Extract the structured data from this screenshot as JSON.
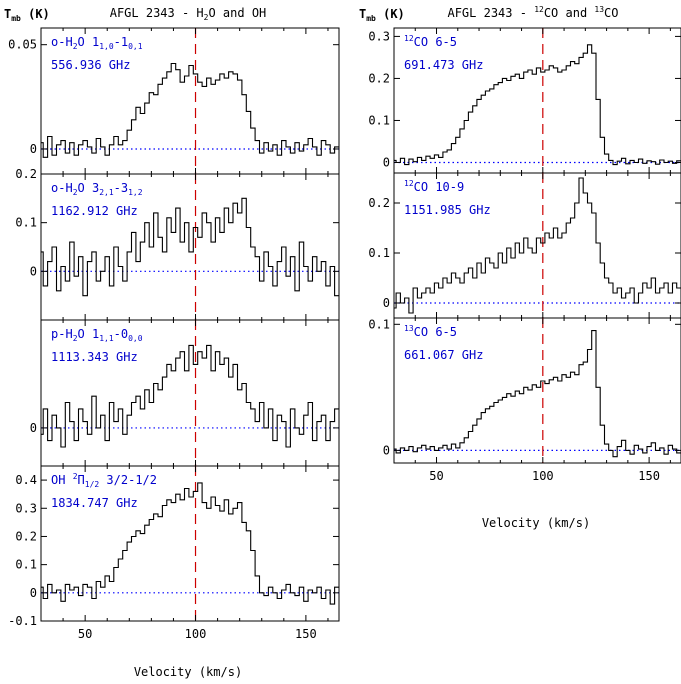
{
  "colors": {
    "text": "#000000",
    "label": "#0000cc",
    "dashed": "#cc0000",
    "baseline": "#0000ff"
  },
  "left_column": {
    "title": "AFGL 2343 - H2O and OH",
    "ylabel": "Tmb (K)",
    "xlabel": "Velocity (km/s)"
  },
  "right_column": {
    "title": "AFGL 2343 - 12CO and 13CO",
    "ylabel": "Tmb (K)",
    "xlabel": "Velocity (km/s)"
  },
  "chart_data": [
    {
      "type": "line",
      "column": "left",
      "label_line1": "o-H2O 1(1,0)-1(0,1)",
      "label_line2": "556.936 GHz",
      "xlim": [
        30,
        165
      ],
      "ylim": [
        -0.012,
        0.058
      ],
      "yticks": [
        0,
        0.05
      ],
      "ytick_labels": [
        "0",
        "0.05"
      ],
      "xticks": [
        50,
        100,
        150
      ],
      "reference_velocity": 100,
      "x": [
        30,
        32,
        34,
        36,
        38,
        40,
        42,
        44,
        46,
        48,
        50,
        52,
        54,
        56,
        58,
        60,
        62,
        64,
        66,
        68,
        70,
        72,
        74,
        76,
        78,
        80,
        82,
        84,
        86,
        88,
        90,
        92,
        94,
        96,
        98,
        100,
        102,
        104,
        106,
        108,
        110,
        112,
        114,
        116,
        118,
        120,
        122,
        124,
        126,
        128,
        130,
        132,
        134,
        136,
        138,
        140,
        142,
        144,
        146,
        148,
        150,
        152,
        154,
        156,
        158,
        160,
        162,
        164
      ],
      "y": [
        0.003,
        -0.004,
        0.006,
        -0.003,
        0.002,
        0.004,
        -0.002,
        0.003,
        -0.003,
        0.002,
        0.004,
        0.001,
        -0.002,
        0.005,
        0.001,
        -0.003,
        0.002,
        0.006,
        0.002,
        0.004,
        0.009,
        0.014,
        0.02,
        0.017,
        0.022,
        0.027,
        0.026,
        0.031,
        0.034,
        0.037,
        0.041,
        0.038,
        0.032,
        0.035,
        0.04,
        0.036,
        0.032,
        0.03,
        0.034,
        0.031,
        0.033,
        0.036,
        0.034,
        0.037,
        0.036,
        0.033,
        0.026,
        0.018,
        0.01,
        0.004,
        -0.002,
        0.003,
        -0.001,
        0.002,
        -0.003,
        0.004,
        0.001,
        -0.002,
        0.003,
        -0.001,
        0.002,
        0.005,
        0.001,
        -0.003,
        0.004,
        0.002,
        -0.002,
        0.001
      ]
    },
    {
      "type": "line",
      "column": "left",
      "label_line1": "o-H2O 3(2,1)-3(1,2)",
      "label_line2": "1162.912 GHz",
      "xlim": [
        30,
        165
      ],
      "ylim": [
        -0.1,
        0.2
      ],
      "yticks": [
        0,
        0.1,
        0.2
      ],
      "ytick_labels": [
        "0",
        "0.1",
        "0.2"
      ],
      "xticks": [
        50,
        100,
        150
      ],
      "reference_velocity": 100,
      "x": [
        30,
        32,
        34,
        36,
        38,
        40,
        42,
        44,
        46,
        48,
        50,
        52,
        54,
        56,
        58,
        60,
        62,
        64,
        66,
        68,
        70,
        72,
        74,
        76,
        78,
        80,
        82,
        84,
        86,
        88,
        90,
        92,
        94,
        96,
        98,
        100,
        102,
        104,
        106,
        108,
        110,
        112,
        114,
        116,
        118,
        120,
        122,
        124,
        126,
        128,
        130,
        132,
        134,
        136,
        138,
        140,
        142,
        144,
        146,
        148,
        150,
        152,
        154,
        156,
        158,
        160,
        162,
        164
      ],
      "y": [
        0.04,
        -0.03,
        0.02,
        0.05,
        -0.04,
        0.01,
        -0.02,
        0.06,
        -0.01,
        0.03,
        -0.05,
        0.02,
        0.04,
        -0.02,
        0.0,
        0.03,
        -0.03,
        0.05,
        0.01,
        -0.02,
        0.04,
        0.08,
        0.02,
        0.06,
        0.1,
        0.05,
        0.12,
        0.07,
        0.04,
        0.11,
        0.08,
        0.13,
        0.06,
        0.1,
        0.04,
        0.09,
        0.07,
        0.12,
        0.1,
        0.06,
        0.11,
        0.08,
        0.13,
        0.1,
        0.14,
        0.12,
        0.15,
        0.09,
        0.05,
        0.03,
        -0.02,
        0.04,
        0.01,
        -0.03,
        0.02,
        0.05,
        -0.01,
        0.03,
        -0.04,
        0.06,
        0.01,
        -0.02,
        0.03,
        0.0,
        0.02,
        -0.03,
        0.01,
        -0.05
      ]
    },
    {
      "type": "line",
      "column": "left",
      "label_line1": "p-H2O 1(1,1)-0(0,0)",
      "label_line2": "1113.343 GHz",
      "xlim": [
        30,
        165
      ],
      "ylim": [
        -0.06,
        0.17
      ],
      "yticks": [
        0
      ],
      "ytick_labels": [
        "0"
      ],
      "xticks": [
        50,
        100,
        150
      ],
      "reference_velocity": 100,
      "x": [
        30,
        32,
        34,
        36,
        38,
        40,
        42,
        44,
        46,
        48,
        50,
        52,
        54,
        56,
        58,
        60,
        62,
        64,
        66,
        68,
        70,
        72,
        74,
        76,
        78,
        80,
        82,
        84,
        86,
        88,
        90,
        92,
        94,
        96,
        98,
        100,
        102,
        104,
        106,
        108,
        110,
        112,
        114,
        116,
        118,
        120,
        122,
        124,
        126,
        128,
        130,
        132,
        134,
        136,
        138,
        140,
        142,
        144,
        146,
        148,
        150,
        152,
        154,
        156,
        158,
        160,
        162,
        164
      ],
      "y": [
        -0.01,
        0.03,
        -0.02,
        0.02,
        0.0,
        -0.03,
        0.04,
        0.01,
        -0.02,
        0.03,
        0.01,
        -0.01,
        0.05,
        0.0,
        0.02,
        -0.02,
        0.04,
        0.01,
        0.03,
        -0.01,
        0.02,
        0.04,
        0.05,
        0.03,
        0.06,
        0.04,
        0.07,
        0.06,
        0.08,
        0.1,
        0.09,
        0.11,
        0.12,
        0.09,
        0.13,
        0.1,
        0.12,
        0.11,
        0.13,
        0.09,
        0.12,
        0.1,
        0.11,
        0.08,
        0.1,
        0.06,
        0.07,
        0.04,
        0.03,
        0.01,
        0.04,
        0.0,
        0.03,
        -0.02,
        0.02,
        0.01,
        -0.03,
        0.03,
        0.0,
        -0.01,
        0.02,
        0.04,
        -0.02,
        0.01,
        0.02,
        -0.02,
        0.01,
        0.03
      ]
    },
    {
      "type": "line",
      "column": "left",
      "label_line1": "OH 2Π1/2 3/2-1/2",
      "label_line2": "1834.747 GHz",
      "xlim": [
        30,
        165
      ],
      "ylim": [
        -0.1,
        0.45
      ],
      "yticks": [
        -0.1,
        0,
        0.1,
        0.2,
        0.3,
        0.4
      ],
      "ytick_labels": [
        "-0.1",
        "0",
        "0.1",
        "0.2",
        "0.3",
        "0.4"
      ],
      "xticks": [
        50,
        100,
        150
      ],
      "xtick_labels": [
        "50",
        "100",
        "150"
      ],
      "reference_velocity": 100,
      "x": [
        30,
        32,
        34,
        36,
        38,
        40,
        42,
        44,
        46,
        48,
        50,
        52,
        54,
        56,
        58,
        60,
        62,
        64,
        66,
        68,
        70,
        72,
        74,
        76,
        78,
        80,
        82,
        84,
        86,
        88,
        90,
        92,
        94,
        96,
        98,
        100,
        102,
        104,
        106,
        108,
        110,
        112,
        114,
        116,
        118,
        120,
        122,
        124,
        126,
        128,
        130,
        132,
        134,
        136,
        138,
        140,
        142,
        144,
        146,
        148,
        150,
        152,
        154,
        156,
        158,
        160,
        162,
        164
      ],
      "y": [
        0.02,
        -0.02,
        0.03,
        0.0,
        0.01,
        -0.03,
        0.03,
        0.01,
        0.02,
        -0.01,
        0.03,
        0.02,
        -0.02,
        0.04,
        0.02,
        0.06,
        0.04,
        0.09,
        0.12,
        0.15,
        0.18,
        0.2,
        0.22,
        0.21,
        0.24,
        0.26,
        0.28,
        0.27,
        0.31,
        0.33,
        0.32,
        0.35,
        0.33,
        0.37,
        0.34,
        0.36,
        0.39,
        0.32,
        0.3,
        0.34,
        0.31,
        0.29,
        0.33,
        0.28,
        0.3,
        0.32,
        0.25,
        0.22,
        0.15,
        0.06,
        0.0,
        -0.01,
        0.02,
        0.0,
        -0.02,
        0.01,
        0.03,
        0.0,
        -0.01,
        0.02,
        -0.03,
        0.01,
        0.0,
        0.02,
        -0.02,
        0.01,
        -0.04,
        0.02
      ]
    },
    {
      "type": "line",
      "column": "right",
      "label_line1": "12CO 6-5",
      "label_line2": "691.473 GHz",
      "xlim": [
        30,
        165
      ],
      "ylim": [
        -0.025,
        0.32
      ],
      "yticks": [
        0,
        0.1,
        0.2,
        0.3
      ],
      "ytick_labels": [
        "0",
        "0.1",
        "0.2",
        "0.3"
      ],
      "xticks": [
        50,
        100,
        150
      ],
      "reference_velocity": 100,
      "x": [
        30,
        32,
        34,
        36,
        38,
        40,
        42,
        44,
        46,
        48,
        50,
        52,
        54,
        56,
        58,
        60,
        62,
        64,
        66,
        68,
        70,
        72,
        74,
        76,
        78,
        80,
        82,
        84,
        86,
        88,
        90,
        92,
        94,
        96,
        98,
        100,
        102,
        104,
        106,
        108,
        110,
        112,
        114,
        116,
        118,
        120,
        122,
        124,
        126,
        128,
        130,
        132,
        134,
        136,
        138,
        140,
        142,
        144,
        146,
        148,
        150,
        152,
        154,
        156,
        158,
        160,
        162,
        164
      ],
      "y": [
        0.005,
        0.0,
        0.01,
        -0.005,
        0.008,
        0.002,
        0.012,
        0.005,
        0.015,
        0.01,
        0.018,
        0.012,
        0.025,
        0.03,
        0.045,
        0.06,
        0.08,
        0.1,
        0.12,
        0.135,
        0.15,
        0.16,
        0.17,
        0.175,
        0.185,
        0.19,
        0.2,
        0.195,
        0.205,
        0.21,
        0.2,
        0.215,
        0.22,
        0.21,
        0.225,
        0.215,
        0.22,
        0.23,
        0.225,
        0.215,
        0.22,
        0.23,
        0.24,
        0.235,
        0.25,
        0.26,
        0.28,
        0.26,
        0.15,
        0.06,
        0.02,
        0.005,
        -0.005,
        0.003,
        0.01,
        -0.003,
        0.005,
        0.0,
        0.008,
        -0.002,
        0.004,
        0.002,
        -0.004,
        0.006,
        0.0,
        0.003,
        -0.002,
        0.004
      ]
    },
    {
      "type": "line",
      "column": "right",
      "label_line1": "12CO 10-9",
      "label_line2": "1151.985 GHz",
      "xlim": [
        30,
        165
      ],
      "ylim": [
        -0.03,
        0.26
      ],
      "yticks": [
        0,
        0.1,
        0.2
      ],
      "ytick_labels": [
        "0",
        "0.1",
        "0.2"
      ],
      "xticks": [
        50,
        100,
        150
      ],
      "reference_velocity": 100,
      "x": [
        30,
        32,
        34,
        36,
        38,
        40,
        42,
        44,
        46,
        48,
        50,
        52,
        54,
        56,
        58,
        60,
        62,
        64,
        66,
        68,
        70,
        72,
        74,
        76,
        78,
        80,
        82,
        84,
        86,
        88,
        90,
        92,
        94,
        96,
        98,
        100,
        102,
        104,
        106,
        108,
        110,
        112,
        114,
        116,
        118,
        120,
        122,
        124,
        126,
        128,
        130,
        132,
        134,
        136,
        138,
        140,
        142,
        144,
        146,
        148,
        150,
        152,
        154,
        156,
        158,
        160,
        162,
        164
      ],
      "y": [
        -0.01,
        0.02,
        0.0,
        0.01,
        -0.02,
        0.03,
        0.01,
        0.02,
        0.03,
        0.02,
        0.04,
        0.03,
        0.05,
        0.04,
        0.06,
        0.05,
        0.04,
        0.06,
        0.07,
        0.05,
        0.08,
        0.06,
        0.09,
        0.08,
        0.07,
        0.1,
        0.08,
        0.11,
        0.09,
        0.12,
        0.1,
        0.13,
        0.11,
        0.1,
        0.13,
        0.12,
        0.14,
        0.13,
        0.15,
        0.13,
        0.14,
        0.16,
        0.17,
        0.2,
        0.25,
        0.22,
        0.2,
        0.18,
        0.12,
        0.08,
        0.05,
        0.04,
        0.02,
        0.03,
        0.01,
        0.02,
        0.03,
        0.0,
        0.02,
        0.04,
        0.03,
        0.05,
        0.02,
        0.03,
        0.04,
        0.02,
        0.04,
        0.03
      ]
    },
    {
      "type": "line",
      "column": "right",
      "label_line1": "13CO 6-5",
      "label_line2": "661.067 GHz",
      "xlim": [
        30,
        165
      ],
      "ylim": [
        -0.01,
        0.105
      ],
      "yticks": [
        0,
        0.1
      ],
      "ytick_labels": [
        "0",
        "0.1"
      ],
      "xticks": [
        50,
        100,
        150
      ],
      "xtick_labels": [
        "50",
        "100",
        "150"
      ],
      "reference_velocity": 100,
      "x": [
        30,
        32,
        34,
        36,
        38,
        40,
        42,
        44,
        46,
        48,
        50,
        52,
        54,
        56,
        58,
        60,
        62,
        64,
        66,
        68,
        70,
        72,
        74,
        76,
        78,
        80,
        82,
        84,
        86,
        88,
        90,
        92,
        94,
        96,
        98,
        100,
        102,
        104,
        106,
        108,
        110,
        112,
        114,
        116,
        118,
        120,
        122,
        124,
        126,
        128,
        130,
        132,
        134,
        136,
        138,
        140,
        142,
        144,
        146,
        148,
        150,
        152,
        154,
        156,
        158,
        160,
        162,
        164
      ],
      "y": [
        0.001,
        -0.002,
        0.002,
        0.0,
        0.003,
        -0.001,
        0.002,
        0.004,
        0.001,
        0.003,
        0.0,
        0.002,
        0.004,
        0.001,
        0.005,
        0.002,
        0.006,
        0.01,
        0.015,
        0.02,
        0.025,
        0.03,
        0.033,
        0.035,
        0.038,
        0.04,
        0.042,
        0.045,
        0.043,
        0.047,
        0.045,
        0.05,
        0.048,
        0.052,
        0.05,
        0.055,
        0.053,
        0.056,
        0.058,
        0.055,
        0.06,
        0.058,
        0.062,
        0.06,
        0.068,
        0.07,
        0.08,
        0.095,
        0.05,
        0.02,
        0.005,
        0.0,
        -0.005,
        0.003,
        0.008,
        0.0,
        -0.003,
        0.004,
        0.001,
        -0.002,
        0.003,
        0.006,
        0.0,
        0.002,
        -0.003,
        0.004,
        0.001,
        -0.002
      ]
    }
  ]
}
